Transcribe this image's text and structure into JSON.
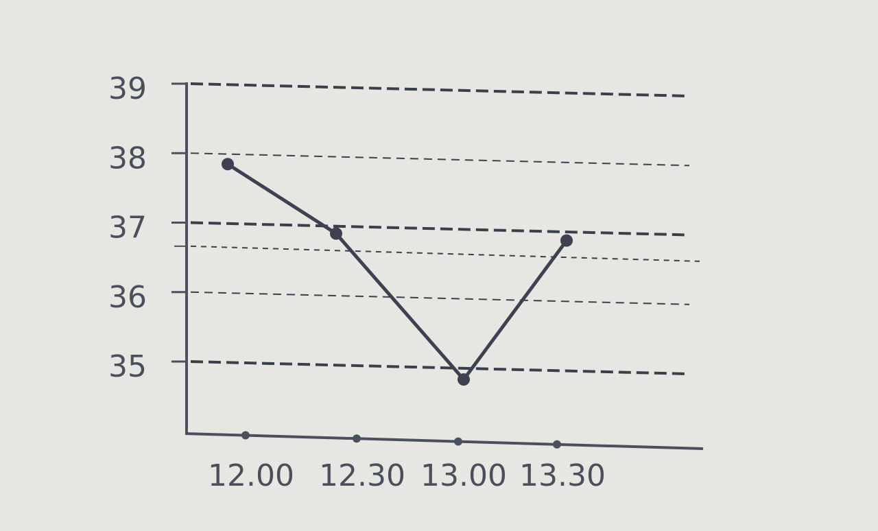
{
  "chart_data": {
    "type": "line",
    "title": "",
    "xlabel": "",
    "ylabel": "",
    "categories": [
      "12.00",
      "12.30",
      "13.00",
      "13.30"
    ],
    "y_ticks": [
      "39",
      "38",
      "37",
      "36",
      "35"
    ],
    "extra_dashed_lines": [
      36.7
    ],
    "ylim": [
      34,
      39
    ],
    "grid": "dashed horizontal",
    "series": [
      {
        "values": [
          38,
          37,
          34.9,
          36.9
        ]
      }
    ],
    "colors": {
      "line": "#3d4250",
      "axis": "#4a5060",
      "grid": "#3a3f4c",
      "background": "#e6e6e2"
    }
  }
}
